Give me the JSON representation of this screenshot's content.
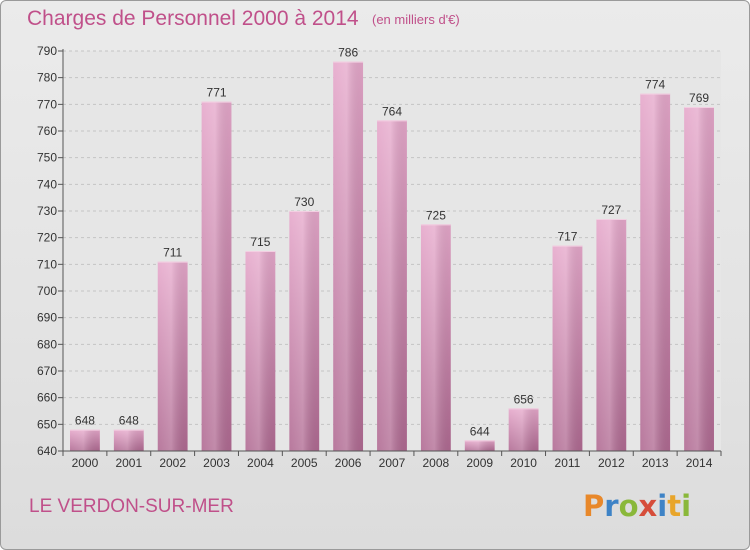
{
  "header": {
    "title": "Charges de Personnel 2000 à 2014",
    "subtitle": "(en milliers d'€)"
  },
  "footer": {
    "commune": "LE VERDON-SUR-MER",
    "logo_letters": [
      "P",
      "r",
      "o",
      "x",
      "i",
      "t",
      "i"
    ],
    "logo_colors": [
      "#e8882a",
      "#3e83c6",
      "#8ab83a",
      "#d64d3a",
      "#3e83c6",
      "#e8a52a",
      "#8ab83a"
    ]
  },
  "chart_data": {
    "type": "bar",
    "title": "Charges de Personnel 2000 à 2014",
    "subtitle": "(en milliers d'€)",
    "categories": [
      "2000",
      "2001",
      "2002",
      "2003",
      "2004",
      "2005",
      "2006",
      "2007",
      "2008",
      "2009",
      "2010",
      "2011",
      "2012",
      "2013",
      "2014"
    ],
    "values": [
      648,
      648,
      711,
      771,
      715,
      730,
      786,
      764,
      725,
      644,
      656,
      717,
      727,
      774,
      769
    ],
    "ylim": [
      640,
      790
    ],
    "yticks": [
      640,
      650,
      660,
      670,
      680,
      690,
      700,
      710,
      720,
      730,
      740,
      750,
      760,
      770,
      780,
      790
    ],
    "grid": true,
    "bar_color": "#d07aab",
    "data_labels": true
  }
}
